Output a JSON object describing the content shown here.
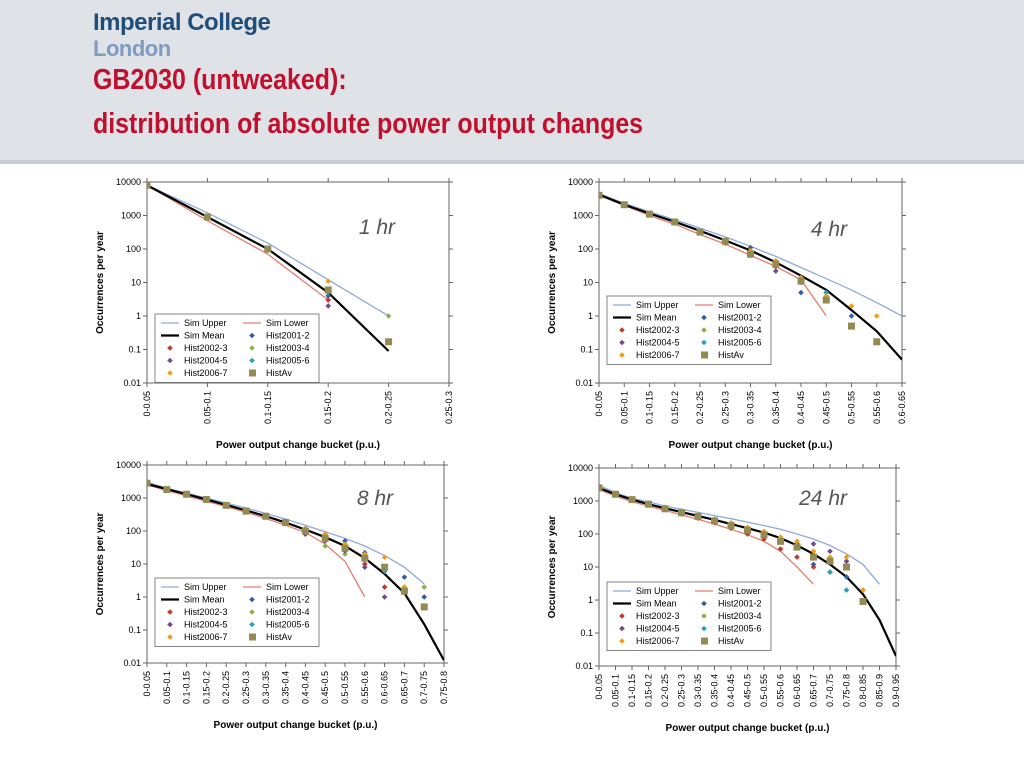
{
  "header": {
    "logo_line1": "Imperial College",
    "logo_line2": "London",
    "title_line1": "GB2030 (untweaked):",
    "title_line2": "distribution of absolute power output changes"
  },
  "colors": {
    "header_bg": "#dfe3e8",
    "title_red": "#c0102e",
    "logo_blue": "#1f4e79",
    "logo_light_blue": "#7f9cc0",
    "Sim Upper": "#8eaadb",
    "Sim Lower": "#e08070",
    "Sim Mean": "#000000",
    "Hist2001-2": "#2e5fa3",
    "Hist2002-3": "#c0392b",
    "Hist2003-4": "#8cb04a",
    "Hist2004-5": "#6e4a8e",
    "Hist2005-6": "#2aa0b8",
    "Hist2006-7": "#f39c12",
    "HistAv": "#948a54"
  },
  "chart_data": [
    {
      "type": "line",
      "title": "1 hr",
      "xlabel": "Power output change bucket (p.u.)",
      "ylabel": "Occurrences per year",
      "scale": "log",
      "ylim": [
        0.01,
        10000
      ],
      "y_ticks": [
        "0.01",
        "0.1",
        "1",
        "10",
        "100",
        "1000",
        "10000"
      ],
      "categories": [
        "0-0.05",
        "0.05-0.1",
        "0.1-0.15",
        "0.15-0.2",
        "0.2-0.25",
        "0.25-0.3"
      ],
      "legend": "lower-left",
      "series": [
        {
          "name": "Sim Upper",
          "kind": "line",
          "values": [
            8000,
            1200,
            150,
            12,
            1,
            null
          ]
        },
        {
          "name": "Sim Lower",
          "kind": "line",
          "values": [
            8000,
            700,
            70,
            3,
            null,
            null
          ]
        },
        {
          "name": "Sim Mean",
          "kind": "line",
          "values": [
            8000,
            900,
            100,
            5,
            0.09,
            null
          ]
        },
        {
          "name": "Hist2001-2",
          "kind": "marker",
          "values": [
            8000,
            900,
            100,
            4,
            null,
            null
          ]
        },
        {
          "name": "Hist2002-3",
          "kind": "marker",
          "values": [
            8000,
            900,
            100,
            3,
            null,
            null
          ]
        },
        {
          "name": "Hist2003-4",
          "kind": "marker",
          "values": [
            8000,
            850,
            90,
            6,
            1,
            null
          ]
        },
        {
          "name": "Hist2004-5",
          "kind": "marker",
          "values": [
            8000,
            850,
            95,
            2,
            null,
            null
          ]
        },
        {
          "name": "Hist2005-6",
          "kind": "marker",
          "values": [
            8000,
            900,
            100,
            5,
            null,
            null
          ]
        },
        {
          "name": "Hist2006-7",
          "kind": "marker",
          "values": [
            8000,
            900,
            100,
            11,
            null,
            null
          ]
        },
        {
          "name": "HistAv",
          "kind": "square",
          "values": [
            8000,
            900,
            100,
            6,
            0.17,
            null
          ]
        }
      ]
    },
    {
      "type": "line",
      "title": "4 hr",
      "xlabel": "Power output change bucket (p.u.)",
      "ylabel": "Occurrences per year",
      "scale": "log",
      "ylim": [
        0.01,
        10000
      ],
      "y_ticks": [
        "0.01",
        "0.1",
        "1",
        "10",
        "100",
        "1000",
        "10000"
      ],
      "categories": [
        "0-0.05",
        "0.05-0.1",
        "0.1-0.15",
        "0.15-0.2",
        "0.2-0.25",
        "0.25-0.3",
        "0.3-0.35",
        "0.35-0.4",
        "0.4-0.45",
        "0.45-0.5",
        "0.5-0.55",
        "0.55-0.6",
        "0.6-0.65"
      ],
      "legend": "lower-left",
      "series": [
        {
          "name": "Sim Upper",
          "kind": "line",
          "values": [
            4500,
            2300,
            1300,
            750,
            420,
            230,
            120,
            60,
            28,
            13,
            6,
            2.5,
            1
          ]
        },
        {
          "name": "Sim Lower",
          "kind": "line",
          "values": [
            4000,
            2000,
            1000,
            550,
            270,
            140,
            65,
            30,
            12,
            1,
            null,
            null,
            null
          ]
        },
        {
          "name": "Sim Mean",
          "kind": "line",
          "values": [
            4200,
            2100,
            1150,
            650,
            350,
            180,
            90,
            40,
            16,
            6,
            1.5,
            0.35,
            0.05
          ]
        },
        {
          "name": "Hist2001-2",
          "kind": "marker",
          "values": [
            4000,
            2100,
            1100,
            650,
            330,
            180,
            110,
            40,
            5,
            5,
            1,
            null,
            null
          ]
        },
        {
          "name": "Hist2002-3",
          "kind": "marker",
          "values": [
            4000,
            2100,
            1100,
            600,
            300,
            150,
            70,
            30,
            10,
            null,
            null,
            null,
            null
          ]
        },
        {
          "name": "Hist2003-4",
          "kind": "marker",
          "values": [
            4000,
            2100,
            1100,
            650,
            320,
            170,
            80,
            40,
            12,
            3,
            0.5,
            null,
            null
          ]
        },
        {
          "name": "Hist2004-5",
          "kind": "marker",
          "values": [
            4000,
            2100,
            1100,
            620,
            310,
            160,
            65,
            22,
            10,
            3,
            null,
            null,
            null
          ]
        },
        {
          "name": "Hist2005-6",
          "kind": "marker",
          "values": [
            4000,
            2100,
            1100,
            640,
            320,
            175,
            85,
            35,
            12,
            5,
            null,
            null,
            null
          ]
        },
        {
          "name": "Hist2006-7",
          "kind": "marker",
          "values": [
            4000,
            2100,
            1100,
            650,
            330,
            180,
            90,
            45,
            14,
            4,
            2,
            1,
            null
          ]
        },
        {
          "name": "HistAv",
          "kind": "square",
          "values": [
            4000,
            2100,
            1100,
            640,
            320,
            170,
            70,
            35,
            11,
            3,
            0.5,
            0.17,
            null
          ]
        }
      ]
    },
    {
      "type": "line",
      "title": "8 hr",
      "xlabel": "Power output change bucket (p.u.)",
      "ylabel": "Occurrences per year",
      "scale": "log",
      "ylim": [
        0.01,
        10000
      ],
      "y_ticks": [
        "0.01",
        "0.1",
        "1",
        "10",
        "100",
        "1000",
        "10000"
      ],
      "categories": [
        "0-0.05",
        "0.05-0.1",
        "0.1-0.15",
        "0.15-0.2",
        "0.2-0.25",
        "0.25-0.3",
        "0.3-0.35",
        "0.35-0.4",
        "0.4-0.45",
        "0.45-0.5",
        "0.5-0.55",
        "0.55-0.6",
        "0.6-0.65",
        "0.65-0.7",
        "0.7-0.75",
        "0.75-0.8"
      ],
      "legend": "lower-left",
      "series": [
        {
          "name": "Sim Upper",
          "kind": "line",
          "values": [
            3000,
            2000,
            1400,
            1000,
            700,
            500,
            340,
            230,
            150,
            95,
            60,
            35,
            18,
            8,
            2.5,
            null
          ]
        },
        {
          "name": "Sim Lower",
          "kind": "line",
          "values": [
            2500,
            1700,
            1150,
            800,
            550,
            370,
            240,
            150,
            90,
            40,
            12,
            1,
            null,
            null,
            null,
            null
          ]
        },
        {
          "name": "Sim Mean",
          "kind": "line",
          "values": [
            2700,
            1850,
            1300,
            900,
            620,
            420,
            280,
            180,
            110,
            65,
            35,
            15,
            5,
            1.3,
            0.15,
            0.012
          ]
        },
        {
          "name": "Hist2001-2",
          "kind": "marker",
          "values": [
            2800,
            1800,
            1300,
            950,
            600,
            400,
            300,
            200,
            120,
            80,
            50,
            22,
            8,
            4,
            1,
            null
          ]
        },
        {
          "name": "Hist2002-3",
          "kind": "marker",
          "values": [
            2800,
            1800,
            1300,
            900,
            600,
            400,
            280,
            170,
            100,
            60,
            30,
            10,
            2,
            null,
            null,
            null
          ]
        },
        {
          "name": "Hist2003-4",
          "kind": "marker",
          "values": [
            2800,
            1800,
            1300,
            900,
            600,
            400,
            280,
            170,
            100,
            35,
            20,
            15,
            8,
            2,
            2,
            null
          ]
        },
        {
          "name": "Hist2004-5",
          "kind": "marker",
          "values": [
            2800,
            1800,
            1300,
            900,
            600,
            400,
            270,
            170,
            80,
            50,
            25,
            8,
            1,
            null,
            null,
            null
          ]
        },
        {
          "name": "Hist2005-6",
          "kind": "marker",
          "values": [
            2800,
            1800,
            1300,
            900,
            600,
            400,
            280,
            180,
            110,
            70,
            35,
            18,
            6,
            null,
            null,
            null
          ]
        },
        {
          "name": "Hist2006-7",
          "kind": "marker",
          "values": [
            2800,
            1800,
            1300,
            900,
            600,
            420,
            300,
            200,
            120,
            80,
            40,
            20,
            16,
            2,
            null,
            null
          ]
        },
        {
          "name": "HistAv",
          "kind": "square",
          "values": [
            2800,
            1800,
            1300,
            900,
            600,
            400,
            280,
            180,
            100,
            60,
            30,
            15,
            8,
            1.5,
            0.5,
            null
          ]
        }
      ]
    },
    {
      "type": "line",
      "title": "24 hr",
      "xlabel": "Power output change bucket (p.u.)",
      "ylabel": "Occurrences per year",
      "scale": "log",
      "ylim": [
        0.01,
        10000
      ],
      "y_ticks": [
        "0.01",
        "0.1",
        "1",
        "10",
        "100",
        "1000",
        "10000"
      ],
      "categories": [
        "0-0.05",
        "0.05-0.1",
        "0.1-0.15",
        "0.15-0.2",
        "0.2-0.25",
        "0.25-0.3",
        "0.3-0.35",
        "0.35-0.4",
        "0.4-0.45",
        "0.45-0.5",
        "0.5-0.55",
        "0.55-0.6",
        "0.6-0.65",
        "0.65-0.7",
        "0.7-0.75",
        "0.75-0.8",
        "0.8-0.85",
        "0.85-0.9",
        "0.9-0.95"
      ],
      "legend": "lower-left",
      "series": [
        {
          "name": "Sim Upper",
          "kind": "line",
          "values": [
            3000,
            1800,
            1200,
            950,
            700,
            560,
            450,
            360,
            290,
            230,
            180,
            140,
            100,
            70,
            45,
            25,
            12,
            3,
            null
          ]
        },
        {
          "name": "Sim Lower",
          "kind": "line",
          "values": [
            2200,
            1400,
            950,
            700,
            520,
            380,
            280,
            200,
            140,
            95,
            60,
            30,
            10,
            3,
            null,
            null,
            null,
            null,
            null
          ]
        },
        {
          "name": "Sim Mean",
          "kind": "line",
          "values": [
            2500,
            1600,
            1100,
            800,
            600,
            460,
            350,
            270,
            200,
            150,
            110,
            75,
            45,
            25,
            12,
            5,
            1.5,
            0.25,
            0.02
          ]
        },
        {
          "name": "Hist2001-2",
          "kind": "marker",
          "values": [
            2500,
            1600,
            1100,
            850,
            600,
            450,
            350,
            280,
            200,
            150,
            110,
            80,
            50,
            12,
            7,
            5,
            2,
            null,
            null
          ]
        },
        {
          "name": "Hist2002-3",
          "kind": "marker",
          "values": [
            2500,
            1600,
            1100,
            800,
            550,
            400,
            300,
            220,
            150,
            100,
            70,
            35,
            20,
            10,
            null,
            null,
            null,
            null,
            null
          ]
        },
        {
          "name": "Hist2003-4",
          "kind": "marker",
          "values": [
            2500,
            1600,
            1100,
            800,
            600,
            450,
            350,
            250,
            180,
            140,
            100,
            70,
            40,
            20,
            15,
            10,
            null,
            null,
            null
          ]
        },
        {
          "name": "Hist2004-5",
          "kind": "marker",
          "values": [
            2500,
            1600,
            1100,
            800,
            600,
            450,
            350,
            250,
            180,
            140,
            100,
            60,
            50,
            50,
            30,
            15,
            null,
            null,
            null
          ]
        },
        {
          "name": "Hist2005-6",
          "kind": "marker",
          "values": [
            2500,
            1600,
            1100,
            800,
            600,
            450,
            350,
            250,
            180,
            140,
            100,
            70,
            40,
            20,
            7,
            2,
            null,
            null,
            null
          ]
        },
        {
          "name": "Hist2006-7",
          "kind": "marker",
          "values": [
            2500,
            1600,
            1100,
            850,
            650,
            500,
            380,
            280,
            220,
            160,
            120,
            80,
            60,
            30,
            20,
            20,
            2,
            null,
            null
          ]
        },
        {
          "name": "HistAv",
          "kind": "square",
          "values": [
            2500,
            1600,
            1100,
            800,
            580,
            440,
            340,
            250,
            180,
            130,
            95,
            60,
            40,
            20,
            15,
            10,
            0.9,
            null,
            null
          ]
        }
      ]
    }
  ]
}
